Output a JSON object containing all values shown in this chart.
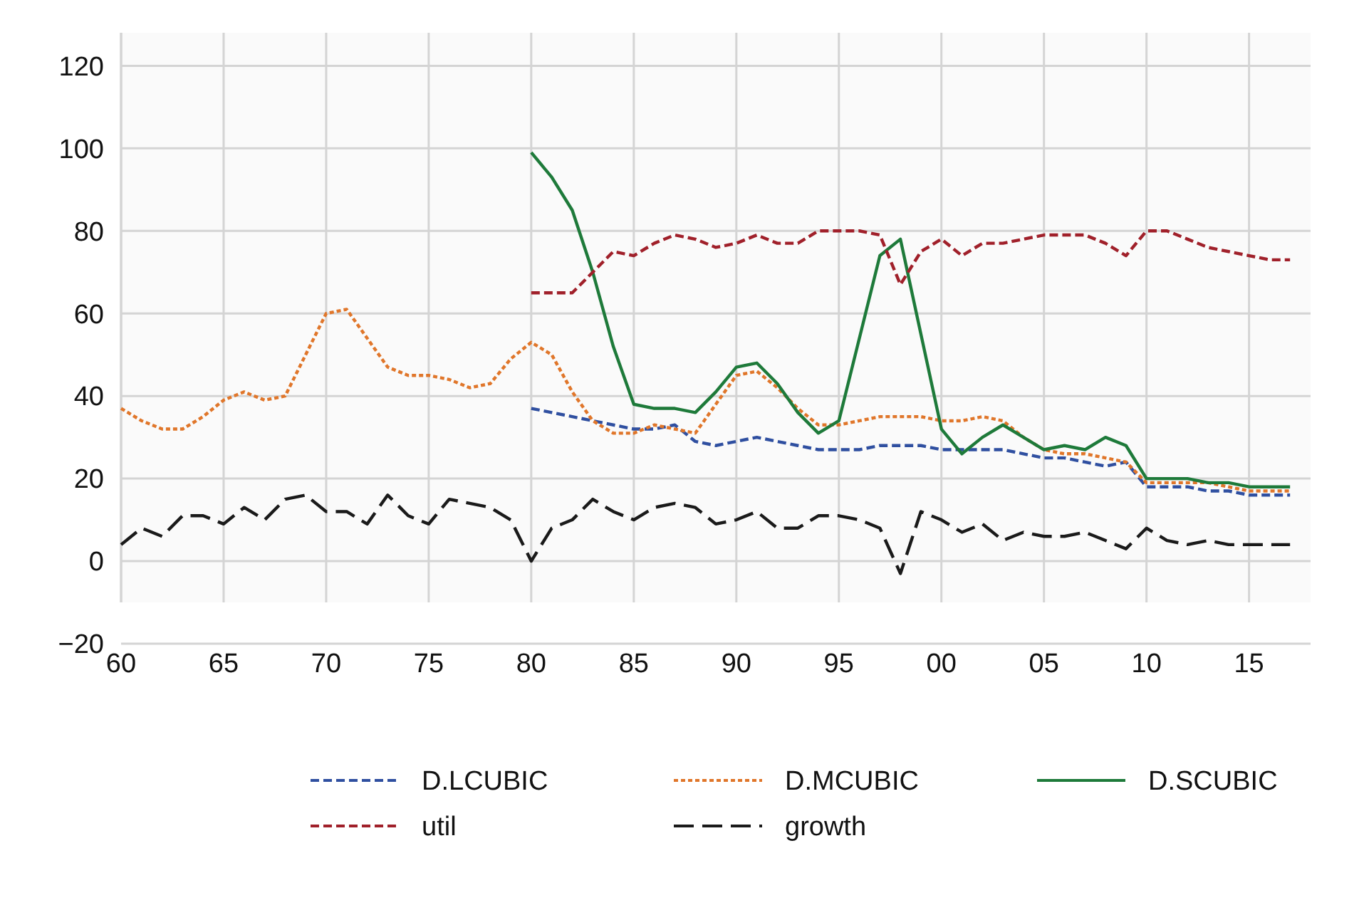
{
  "chart_data": {
    "type": "line",
    "x": [
      1960,
      1961,
      1962,
      1963,
      1964,
      1965,
      1966,
      1967,
      1968,
      1969,
      1970,
      1971,
      1972,
      1973,
      1974,
      1975,
      1976,
      1977,
      1978,
      1979,
      1980,
      1981,
      1982,
      1983,
      1984,
      1985,
      1986,
      1987,
      1988,
      1989,
      1990,
      1991,
      1992,
      1993,
      1994,
      1995,
      1996,
      1997,
      1998,
      1999,
      2000,
      2001,
      2002,
      2003,
      2004,
      2005,
      2006,
      2007,
      2008,
      2009,
      2010,
      2011,
      2012,
      2013,
      2014,
      2015,
      2016,
      2017
    ],
    "xlim": [
      1960,
      2018
    ],
    "xticks": [
      {
        "value": 1960,
        "label": "60"
      },
      {
        "value": 1965,
        "label": "65"
      },
      {
        "value": 1970,
        "label": "70"
      },
      {
        "value": 1975,
        "label": "75"
      },
      {
        "value": 1980,
        "label": "80"
      },
      {
        "value": 1985,
        "label": "85"
      },
      {
        "value": 1990,
        "label": "90"
      },
      {
        "value": 1995,
        "label": "95"
      },
      {
        "value": 2000,
        "label": "00"
      },
      {
        "value": 2005,
        "label": "05"
      },
      {
        "value": 2010,
        "label": "10"
      },
      {
        "value": 2015,
        "label": "15"
      }
    ],
    "ylim": [
      -20,
      128
    ],
    "yticks": [
      {
        "value": -20,
        "label": "−20"
      },
      0,
      20,
      40,
      60,
      80,
      100,
      120
    ],
    "grid": true,
    "legend": "bottom",
    "series": [
      {
        "name": "D.LCUBIC",
        "color": "#2f4fa0",
        "line_style": "dashed",
        "values": [
          null,
          null,
          null,
          null,
          null,
          null,
          null,
          null,
          null,
          null,
          null,
          null,
          null,
          null,
          null,
          null,
          null,
          null,
          null,
          null,
          37,
          36,
          35,
          34,
          33,
          32,
          32,
          33,
          29,
          28,
          29,
          30,
          29,
          28,
          27,
          27,
          27,
          28,
          28,
          28,
          27,
          27,
          27,
          27,
          26,
          25,
          25,
          24,
          23,
          24,
          18,
          18,
          18,
          17,
          17,
          16,
          16,
          16
        ]
      },
      {
        "name": "D.MCUBIC",
        "color": "#e0762a",
        "line_style": "dotted",
        "values": [
          37,
          34,
          32,
          32,
          35,
          39,
          41,
          39,
          40,
          50,
          60,
          61,
          54,
          47,
          45,
          45,
          44,
          42,
          43,
          49,
          53,
          50,
          41,
          34,
          31,
          31,
          33,
          32,
          31,
          38,
          45,
          46,
          42,
          37,
          33,
          33,
          34,
          35,
          35,
          35,
          34,
          34,
          35,
          34,
          30,
          27,
          26,
          26,
          25,
          24,
          19,
          19,
          19,
          19,
          18,
          17,
          17,
          17
        ]
      },
      {
        "name": "D.SCUBIC",
        "color": "#1e7a3a",
        "line_style": "solid",
        "values": [
          null,
          null,
          null,
          null,
          null,
          null,
          null,
          null,
          null,
          null,
          null,
          null,
          null,
          null,
          null,
          null,
          null,
          null,
          null,
          null,
          99,
          93,
          85,
          70,
          52,
          38,
          37,
          37,
          36,
          41,
          47,
          48,
          43,
          36,
          31,
          34,
          54,
          74,
          78,
          55,
          32,
          26,
          30,
          33,
          30,
          27,
          28,
          27,
          30,
          28,
          20,
          20,
          20,
          19,
          19,
          18,
          18,
          18
        ]
      },
      {
        "name": "util",
        "color": "#a0202a",
        "line_style": "dashed",
        "values": [
          null,
          null,
          null,
          null,
          null,
          null,
          null,
          null,
          null,
          null,
          null,
          null,
          null,
          null,
          null,
          null,
          null,
          null,
          null,
          null,
          65,
          65,
          65,
          70,
          75,
          74,
          77,
          79,
          78,
          76,
          77,
          79,
          77,
          77,
          80,
          80,
          80,
          79,
          67,
          75,
          78,
          74,
          77,
          77,
          78,
          79,
          79,
          79,
          77,
          74,
          80,
          80,
          78,
          76,
          75,
          74,
          73,
          73
        ]
      },
      {
        "name": "growth",
        "color": "#1a1a1a",
        "line_style": "longdash",
        "values": [
          4,
          8,
          6,
          11,
          11,
          9,
          13,
          10,
          15,
          16,
          12,
          12,
          9,
          16,
          11,
          9,
          15,
          14,
          13,
          10,
          0,
          8,
          10,
          15,
          12,
          10,
          13,
          14,
          13,
          9,
          10,
          12,
          8,
          8,
          11,
          11,
          10,
          8,
          -3,
          12,
          10,
          7,
          9,
          5,
          7,
          6,
          6,
          7,
          5,
          3,
          8,
          5,
          4,
          5,
          4,
          4,
          4,
          4
        ]
      }
    ]
  }
}
